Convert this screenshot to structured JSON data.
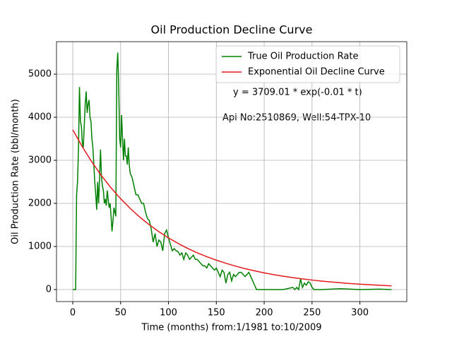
{
  "chart_data": {
    "type": "line",
    "title": "Oil Production Decline Curve",
    "xlabel": "Time (months) from:1/1981 to:10/2009",
    "ylabel": "Oil Production Rate (bbl/month)",
    "annotations": [
      "y = 3709.01 * exp(-0.01 * t)",
      "Api No:2510869, Well:54-TPX-10"
    ],
    "xlim": [
      -17,
      349
    ],
    "ylim": [
      -279,
      5754
    ],
    "xticks": [
      0,
      50,
      100,
      150,
      200,
      250,
      300
    ],
    "yticks": [
      0,
      1000,
      2000,
      3000,
      4000,
      5000
    ],
    "grid": true,
    "legend": "upper right",
    "series": [
      {
        "name": "True Oil Production Rate",
        "color": "#008000",
        "x": [
          0,
          1,
          2,
          3,
          4,
          5,
          6,
          7,
          8,
          9,
          10,
          11,
          12,
          13,
          14,
          15,
          16,
          17,
          18,
          19,
          20,
          21,
          22,
          23,
          24,
          25,
          26,
          27,
          28,
          29,
          30,
          31,
          32,
          33,
          34,
          35,
          36,
          37,
          38,
          39,
          40,
          41,
          42,
          43,
          44,
          45,
          46,
          47,
          48,
          49,
          50,
          51,
          52,
          53,
          54,
          55,
          56,
          57,
          58,
          59,
          60,
          62,
          64,
          66,
          68,
          70,
          72,
          74,
          76,
          78,
          80,
          82,
          84,
          86,
          88,
          90,
          92,
          94,
          96,
          98,
          100,
          102,
          104,
          106,
          108,
          110,
          112,
          114,
          116,
          118,
          120,
          122,
          124,
          126,
          128,
          130,
          132,
          134,
          136,
          138,
          140,
          142,
          144,
          146,
          148,
          150,
          152,
          154,
          156,
          158,
          160,
          162,
          164,
          166,
          168,
          170,
          172,
          174,
          176,
          178,
          180,
          182,
          184,
          186,
          188,
          190,
          192,
          200,
          210,
          220,
          230,
          232,
          234,
          236,
          238,
          240,
          242,
          244,
          246,
          248,
          250,
          252,
          260,
          280,
          300,
          320,
          333
        ],
        "values": [
          0,
          0,
          0,
          0,
          2200,
          2500,
          3300,
          4700,
          3900,
          3800,
          3400,
          3300,
          3800,
          4300,
          4600,
          4100,
          4300,
          4400,
          4000,
          3900,
          3500,
          3300,
          2900,
          2500,
          2200,
          1850,
          2500,
          2000,
          2600,
          3250,
          2600,
          2400,
          2300,
          2000,
          2100,
          1950,
          2300,
          2100,
          1900,
          2000,
          1700,
          1350,
          1600,
          1900,
          1800,
          1700,
          5100,
          5500,
          4700,
          3500,
          3300,
          4050,
          3500,
          3000,
          3500,
          3100,
          3100,
          2900,
          3300,
          2900,
          2700,
          2600,
          2400,
          2200,
          2200,
          2100,
          2000,
          2000,
          1800,
          1650,
          1600,
          1400,
          1100,
          1300,
          1000,
          1150,
          1100,
          900,
          1300,
          1380,
          1200,
          1050,
          900,
          950,
          900,
          880,
          800,
          850,
          700,
          850,
          800,
          700,
          750,
          800,
          700,
          700,
          650,
          600,
          550,
          550,
          500,
          600,
          550,
          500,
          450,
          500,
          400,
          300,
          450,
          400,
          150,
          350,
          400,
          200,
          350,
          300,
          350,
          400,
          400,
          350,
          300,
          350,
          400,
          300,
          200,
          100,
          0,
          0,
          0,
          0,
          50,
          0,
          50,
          0,
          250,
          50,
          150,
          100,
          180,
          150,
          50,
          0,
          0,
          20,
          0,
          10,
          0
        ]
      },
      {
        "name": "Exponential Oil Decline Curve",
        "color": "#e41a1c",
        "x": [
          0,
          10,
          20,
          30,
          40,
          50,
          60,
          70,
          80,
          90,
          100,
          110,
          120,
          130,
          140,
          150,
          160,
          170,
          180,
          190,
          200,
          210,
          220,
          230,
          240,
          250,
          260,
          270,
          280,
          290,
          300,
          310,
          320,
          333
        ],
        "values": [
          3709,
          3313,
          2959,
          2643,
          2361,
          2109,
          1883,
          1682,
          1503,
          1342,
          1199,
          1071,
          956,
          854,
          763,
          682,
          609,
          544,
          486,
          434,
          387,
          346,
          309,
          276,
          247,
          220,
          197,
          176,
          157,
          140,
          125,
          112,
          100,
          86
        ]
      }
    ]
  }
}
